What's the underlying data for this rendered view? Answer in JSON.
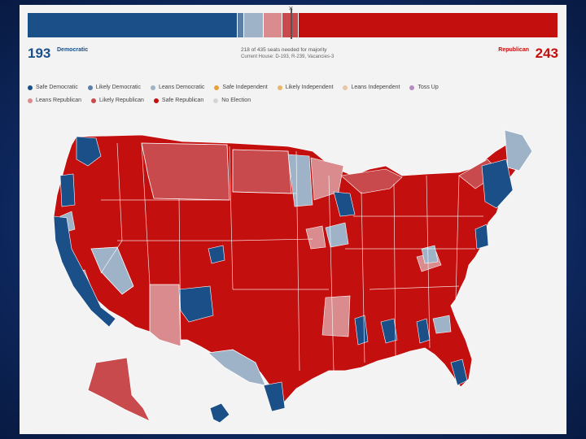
{
  "seats": {
    "democratic_count": "193",
    "democratic_label": "Democratic",
    "republican_count": "243",
    "republican_label": "Republican",
    "majority_text": "218 of 435 seats needed for majority",
    "current_house_text": "Current House: D-193, R-239, Vacancies-3",
    "bar_segments": [
      {
        "category": "safe-democratic",
        "seats": 173,
        "color": "#1b4f88"
      },
      {
        "category": "likely-democratic",
        "seats": 5,
        "color": "#5b7fa7"
      },
      {
        "category": "leans-democratic",
        "seats": 15,
        "color": "#9fb3c8"
      },
      {
        "category": "leans-republican",
        "seats": 15,
        "color": "#d98b8e"
      },
      {
        "category": "likely-republican",
        "seats": 13,
        "color": "#c94a4d"
      },
      {
        "category": "safe-republican",
        "seats": 214,
        "color": "#c40f0f"
      }
    ]
  },
  "legend": [
    {
      "label": "Safe Democratic",
      "color": "#1b4f88"
    },
    {
      "label": "Likely Democratic",
      "color": "#5b7fa7"
    },
    {
      "label": "Leans Democratic",
      "color": "#9fb3c8"
    },
    {
      "label": "Safe Independent",
      "color": "#e8a038"
    },
    {
      "label": "Likely Independent",
      "color": "#eab76a"
    },
    {
      "label": "Leans Independent",
      "color": "#e7c7a8"
    },
    {
      "label": "Toss Up",
      "color": "#b78ac2"
    },
    {
      "label": "Leans Republican",
      "color": "#d98b8e"
    },
    {
      "label": "Likely Republican",
      "color": "#c94a4d"
    },
    {
      "label": "Safe Republican",
      "color": "#c40f0f"
    },
    {
      "label": "No Election",
      "color": "#d4d4d4"
    }
  ],
  "colors": {
    "safe_rep": "#c40f0f",
    "likely_rep": "#c94a4d",
    "leans_rep": "#d98b8e",
    "safe_dem": "#1b4f88",
    "leans_dem": "#9fb3c8"
  }
}
